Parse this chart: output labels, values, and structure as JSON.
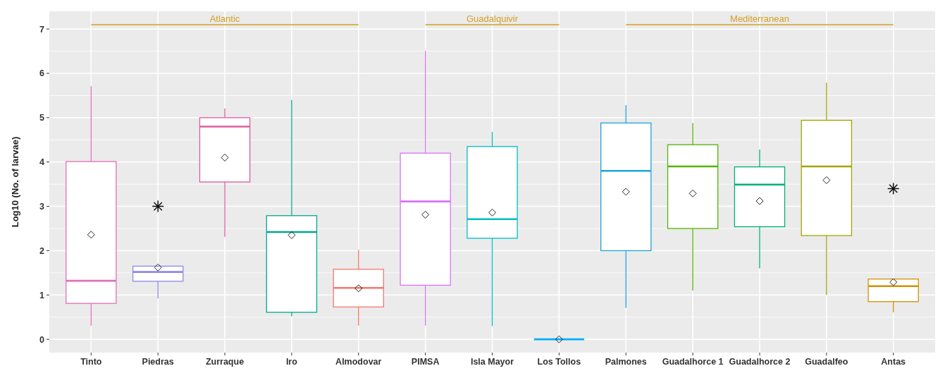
{
  "chart_data": {
    "type": "box",
    "ylabel": "Log10 (No. of larvae)",
    "categories": [
      "Tinto",
      "Piedras",
      "Zurraque",
      "Iro",
      "Almodovar",
      "PIMSA",
      "Isla Mayor",
      "Los Tollos",
      "Palmones",
      "Guadalhorce 1",
      "Guadalhorce 2",
      "Guadalfeo",
      "Antas"
    ],
    "colors": [
      "#e46db8",
      "#8f89e8",
      "#dc5e9e",
      "#00a98f",
      "#f8766d",
      "#da72fb",
      "#00bfc4",
      "#00b0f6",
      "#1fa3da",
      "#53b400",
      "#00b079",
      "#a3a500",
      "#d39200"
    ],
    "boxes": [
      {
        "low": 0.31,
        "q1": 0.81,
        "median": 1.32,
        "q3": 4.01,
        "high": 5.71,
        "mean": 2.36
      },
      {
        "low": 0.92,
        "q1": 1.31,
        "median": 1.52,
        "q3": 1.65,
        "high": 1.65,
        "mean": 1.62,
        "outliers": [
          3.0
        ]
      },
      {
        "low": 2.31,
        "q1": 3.55,
        "median": 4.8,
        "q3": 5.0,
        "high": 5.21,
        "mean": 4.1
      },
      {
        "low": 0.52,
        "q1": 0.61,
        "median": 2.42,
        "q3": 2.79,
        "high": 5.4,
        "mean": 2.35
      },
      {
        "low": 0.31,
        "q1": 0.73,
        "median": 1.16,
        "q3": 1.58,
        "high": 2.02,
        "mean": 1.15
      },
      {
        "low": 0.31,
        "q1": 1.22,
        "median": 3.11,
        "q3": 4.2,
        "high": 6.51,
        "mean": 2.81
      },
      {
        "low": 0.3,
        "q1": 2.28,
        "median": 2.71,
        "q3": 4.35,
        "high": 4.68,
        "mean": 2.86
      },
      {
        "low": 0,
        "q1": 0,
        "median": 0,
        "q3": 0,
        "high": 0,
        "mean": 0
      },
      {
        "low": 0.71,
        "q1": 2.0,
        "median": 3.8,
        "q3": 4.88,
        "high": 5.28,
        "mean": 3.33
      },
      {
        "low": 1.1,
        "q1": 2.5,
        "median": 3.9,
        "q3": 4.39,
        "high": 4.88,
        "mean": 3.29
      },
      {
        "low": 1.6,
        "q1": 2.54,
        "median": 3.49,
        "q3": 3.89,
        "high": 4.28,
        "mean": 3.12
      },
      {
        "low": 1.0,
        "q1": 2.34,
        "median": 3.9,
        "q3": 4.94,
        "high": 5.79,
        "mean": 3.59
      },
      {
        "low": 0.61,
        "q1": 0.85,
        "median": 1.2,
        "q3": 1.36,
        "high": 1.36,
        "mean": 1.29,
        "outliers": [
          3.4
        ]
      }
    ],
    "annotations": [
      "Atlantic",
      "Guadalquivir",
      "Mediterranean"
    ],
    "ylim": [
      -0.3,
      7.4
    ],
    "yticks": [
      0,
      1,
      2,
      3,
      4,
      5,
      6,
      7
    ],
    "grid": true
  }
}
